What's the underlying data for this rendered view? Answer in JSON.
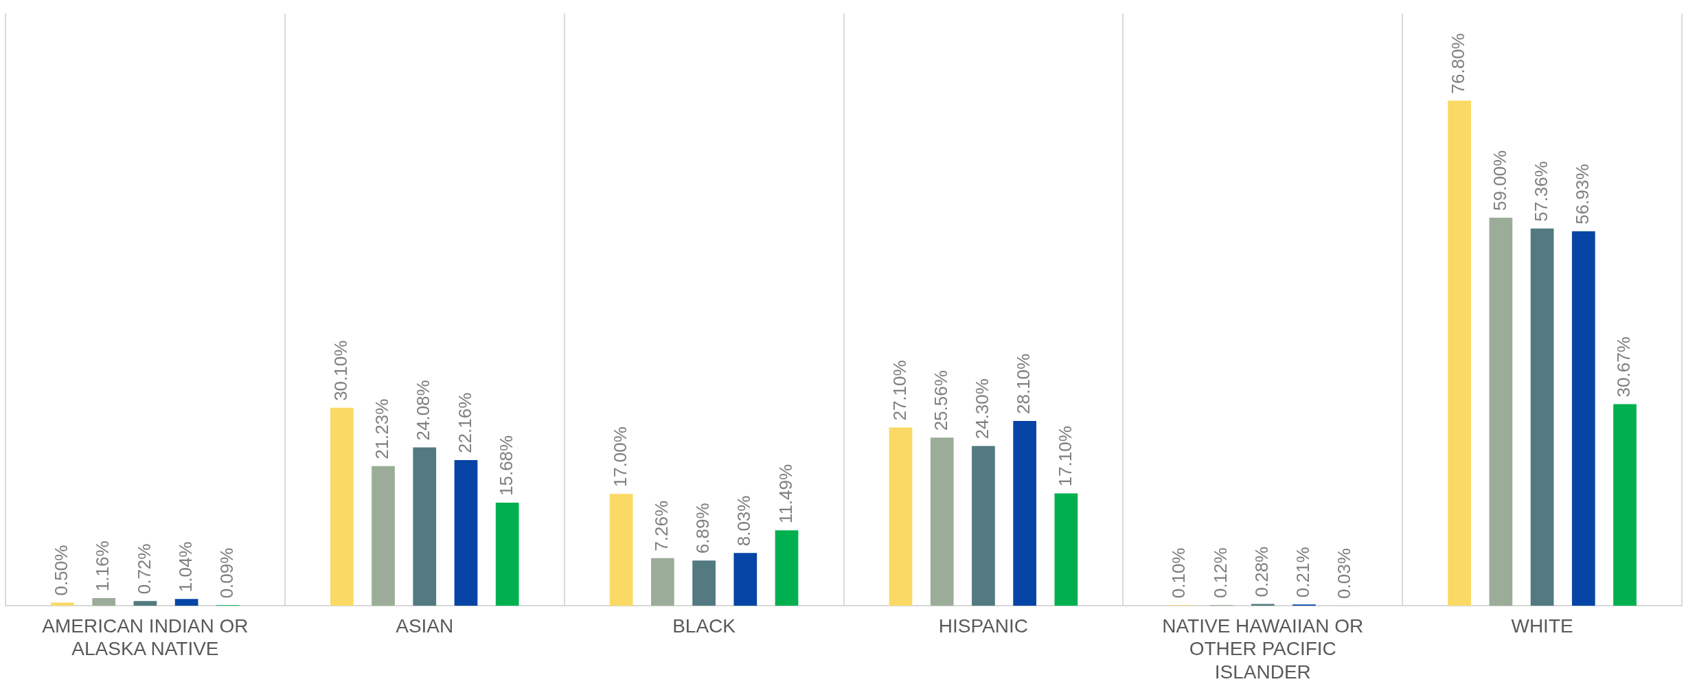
{
  "chart_data": {
    "type": "bar",
    "categories": [
      "AMERICAN INDIAN OR\nALASKA NATIVE",
      "ASIAN",
      "BLACK",
      "HISPANIC",
      "NATIVE HAWAIIAN OR\nOTHER PACIFIC\nISLANDER",
      "WHITE"
    ],
    "series": [
      {
        "color": "#fad965",
        "values": [
          0.5,
          30.1,
          17.0,
          27.1,
          0.1,
          76.8
        ],
        "value_labels": [
          "0.50%",
          "30.10%",
          "17.00%",
          "27.10%",
          "0.10%",
          "76.80%"
        ]
      },
      {
        "color": "#9bad98",
        "values": [
          1.16,
          21.23,
          7.26,
          25.56,
          0.12,
          59.0
        ],
        "value_labels": [
          "1.16%",
          "21.23%",
          "7.26%",
          "25.56%",
          "0.12%",
          "59.00%"
        ]
      },
      {
        "color": "#527a80",
        "values": [
          0.72,
          24.08,
          6.89,
          24.3,
          0.28,
          57.36
        ],
        "value_labels": [
          "0.72%",
          "24.08%",
          "6.89%",
          "24.30%",
          "0.28%",
          "57.36%"
        ]
      },
      {
        "color": "#0645a6",
        "values": [
          1.04,
          22.16,
          8.03,
          28.1,
          0.21,
          56.93
        ],
        "value_labels": [
          "1.04%",
          "22.16%",
          "8.03%",
          "28.10%",
          "0.21%",
          "56.93%"
        ]
      },
      {
        "color": "#00b050",
        "values": [
          0.09,
          15.68,
          11.49,
          17.1,
          0.03,
          30.67
        ],
        "value_labels": [
          "0.09%",
          "15.68%",
          "11.49%",
          "17.10%",
          "0.03%",
          "30.67%"
        ]
      }
    ],
    "grid": "x",
    "legend": false
  }
}
